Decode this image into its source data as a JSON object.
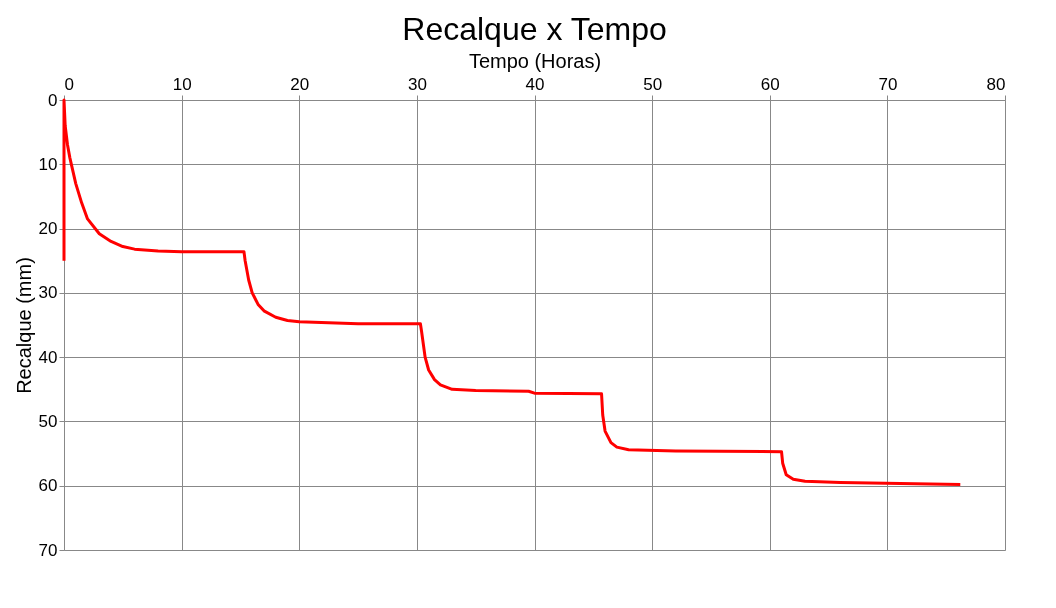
{
  "chart_data": {
    "type": "line",
    "title": "Recalque x Tempo",
    "xlabel": "Tempo (Horas)",
    "ylabel": "Recalque (mm)",
    "xlim": [
      0,
      80
    ],
    "xticks": [
      0,
      10,
      20,
      30,
      40,
      50,
      60,
      70,
      80
    ],
    "ylim": [
      70,
      0
    ],
    "yticks": [
      0,
      10,
      20,
      30,
      40,
      50,
      60,
      70
    ],
    "grid": true,
    "legend": false,
    "marker": "none",
    "line_style": "solid",
    "series": [
      {
        "color": "#ff0000",
        "x": [
          0,
          0,
          0.1,
          0.3,
          0.5,
          1,
          1.5,
          2,
          3,
          4,
          5,
          6,
          8,
          10,
          15.3,
          15.4,
          15.7,
          16,
          16.5,
          17,
          18,
          19,
          20,
          25,
          30.3,
          30.4,
          30.7,
          31,
          31.5,
          32,
          33,
          35,
          39.5,
          40,
          45.7,
          45.8,
          46,
          46.5,
          47,
          48,
          52,
          61,
          61.1,
          61.4,
          62,
          63,
          66,
          76.2
        ],
        "values": [
          25,
          0,
          4,
          7,
          9,
          13,
          16,
          18.5,
          20.8,
          22,
          22.8,
          23.2,
          23.5,
          23.6,
          23.6,
          25,
          28,
          30,
          31.8,
          32.8,
          33.8,
          34.3,
          34.5,
          34.8,
          34.8,
          36,
          40,
          42,
          43.5,
          44.3,
          45,
          45.2,
          45.3,
          45.6,
          45.7,
          49,
          51.5,
          53.3,
          54,
          54.4,
          54.6,
          54.7,
          56.5,
          58.3,
          59,
          59.3,
          59.5,
          59.8
        ]
      }
    ]
  }
}
